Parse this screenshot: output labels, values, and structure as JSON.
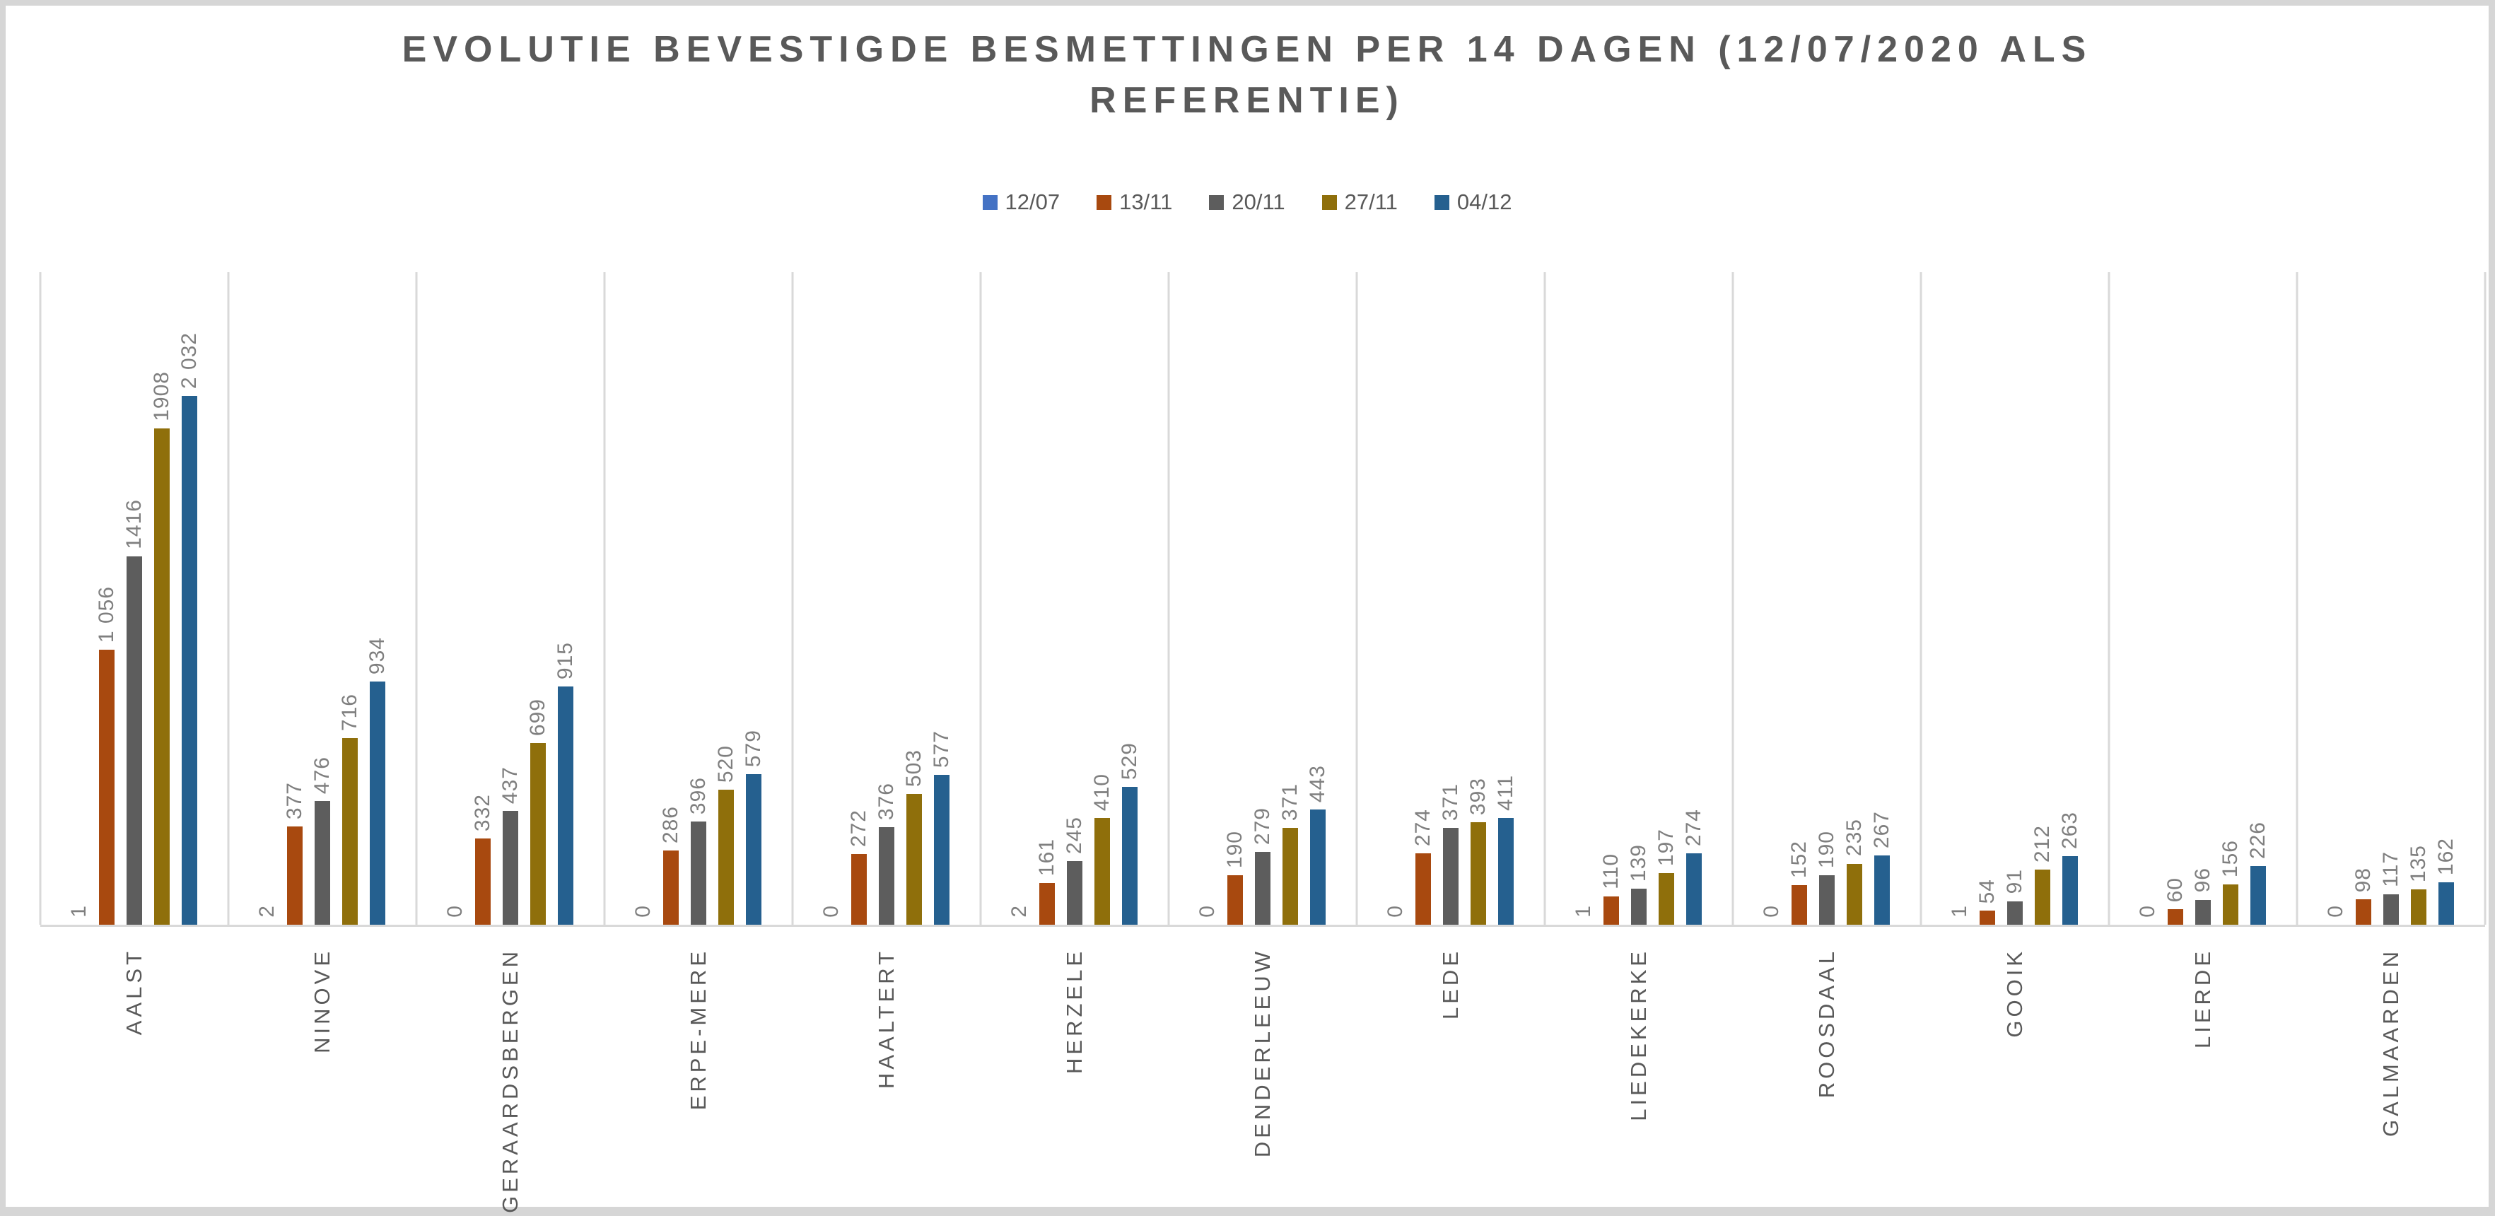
{
  "title": {
    "line1": "EVOLUTIE BEVESTIGDE BESMETTINGEN PER 14 DAGEN (12/07/2020 ALS",
    "line2": "REFERENTIE)",
    "full": "EVOLUTIE BEVESTIGDE BESMETTINGEN PER 14 DAGEN (12/07/2020 ALS REFERENTIE)",
    "color": "#595959"
  },
  "chart_data": {
    "type": "bar",
    "title": "EVOLUTIE BEVESTIGDE BESMETTINGEN PER 14 DAGEN (12/07/2020 ALS REFERENTIE)",
    "categories": [
      "AALST",
      "NINOVE",
      "GERAARDSBERGEN",
      "ERPE-MERE",
      "HAALTERT",
      "HERZELE",
      "DENDERLEEUW",
      "LEDE",
      "LIEDEKERKE",
      "ROOSDAAL",
      "GOOIK",
      "LIERDE",
      "GALMAARDEN"
    ],
    "series": [
      {
        "name": "12/07",
        "color": "#4472C4",
        "values": [
          1,
          2,
          0,
          0,
          0,
          2,
          0,
          0,
          1,
          0,
          1,
          0,
          0
        ],
        "labels": [
          "1",
          "2",
          "0",
          "0",
          "0",
          "2",
          "0",
          "0",
          "1",
          "0",
          "1",
          "0",
          "0"
        ]
      },
      {
        "name": "13/11",
        "color": "#A8490F",
        "values": [
          1056,
          377,
          332,
          286,
          272,
          161,
          190,
          274,
          110,
          152,
          54,
          60,
          98
        ],
        "labels": [
          "1 056",
          "377",
          "332",
          "286",
          "272",
          "161",
          "190",
          "274",
          "110",
          "152",
          "54",
          "60",
          "98"
        ]
      },
      {
        "name": "20/11",
        "color": "#5D5D5D",
        "values": [
          1416,
          476,
          437,
          396,
          376,
          245,
          279,
          371,
          139,
          190,
          91,
          96,
          117
        ],
        "labels": [
          "1416",
          "476",
          "437",
          "396",
          "376",
          "245",
          "279",
          "371",
          "139",
          "190",
          "91",
          "96",
          "117"
        ]
      },
      {
        "name": "27/11",
        "color": "#8F6F0B",
        "values": [
          1908,
          716,
          699,
          520,
          503,
          410,
          371,
          393,
          197,
          235,
          212,
          156,
          135
        ],
        "labels": [
          "1908",
          "716",
          "699",
          "520",
          "503",
          "410",
          "371",
          "393",
          "197",
          "235",
          "212",
          "156",
          "135"
        ]
      },
      {
        "name": "04/12",
        "color": "#25608F",
        "values": [
          2032,
          934,
          915,
          579,
          577,
          529,
          443,
          411,
          274,
          267,
          263,
          226,
          162
        ],
        "labels": [
          "2 032",
          "934",
          "915",
          "579",
          "577",
          "529",
          "443",
          "411",
          "274",
          "267",
          "263",
          "226",
          "162"
        ]
      }
    ],
    "ylim": [
      0,
      2200
    ],
    "xlabel": "",
    "ylabel": "",
    "grid": "vertical category separator lines, no horizontal gridlines, no y-axis labels",
    "gridline_color": "#D9D9D9",
    "axis_line_color": "#D9D9D9",
    "data_label_color": "#7F7F7F",
    "category_label_color": "#595959",
    "data_labels": "rotated 90° (reading bottom-to-top), outside end of each bar",
    "legend_position": "top-center"
  }
}
